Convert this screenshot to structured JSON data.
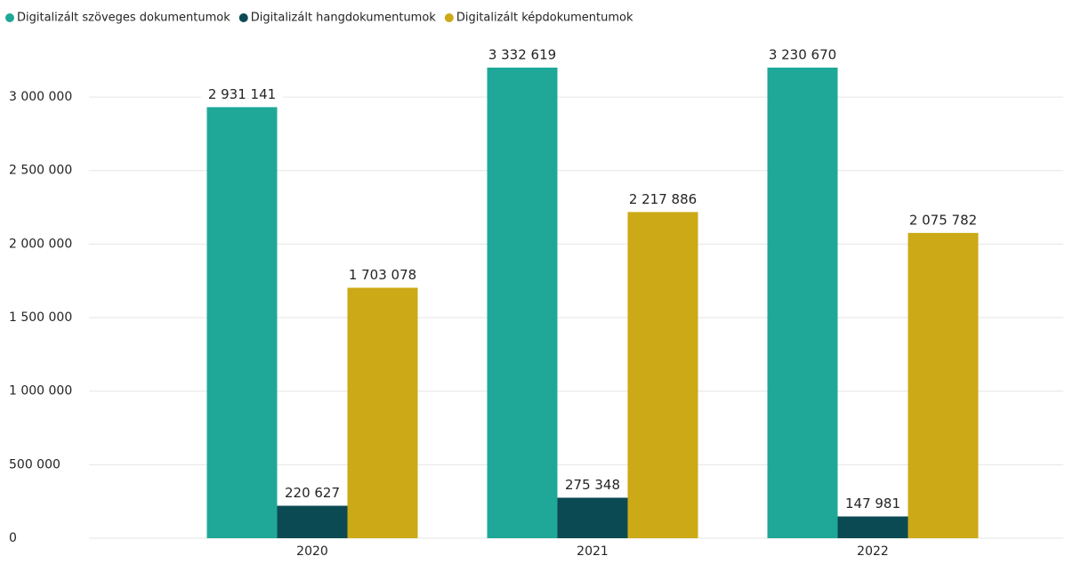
{
  "chart_data": {
    "type": "bar",
    "categories": [
      "2020",
      "2021",
      "2022"
    ],
    "series": [
      {
        "name": "Digitalizált szöveges dokumentumok",
        "color": "#1fa898",
        "values": [
          2931141,
          3332619,
          3230670
        ],
        "value_labels": [
          "2 931 141",
          "3 332 619",
          "3 230 670"
        ]
      },
      {
        "name": "Digitalizált hangdokumentumok",
        "color": "#0b4a52",
        "values": [
          220627,
          275348,
          147981
        ],
        "value_labels": [
          "220 627",
          "275 348",
          "147 981"
        ]
      },
      {
        "name": "Digitalizált képdokumentumok",
        "color": "#cca916",
        "values": [
          1703078,
          2217886,
          2075782
        ],
        "value_labels": [
          "1 703 078",
          "2 217 886",
          "2 075 782"
        ]
      }
    ],
    "ylim": [
      0,
      3200000
    ],
    "yticks": [
      0,
      {
        "value": 500000,
        "label": "500 000"
      },
      {
        "value": 1000000,
        "label": "1 000 000"
      },
      {
        "value": 1500000,
        "label": "1 500 000"
      },
      {
        "value": 2000000,
        "label": "2 000 000"
      },
      {
        "value": 2500000,
        "label": "2 500 000"
      },
      {
        "value": 3000000,
        "label": "3 000 000"
      }
    ],
    "grid": true,
    "legend": "top-left"
  }
}
